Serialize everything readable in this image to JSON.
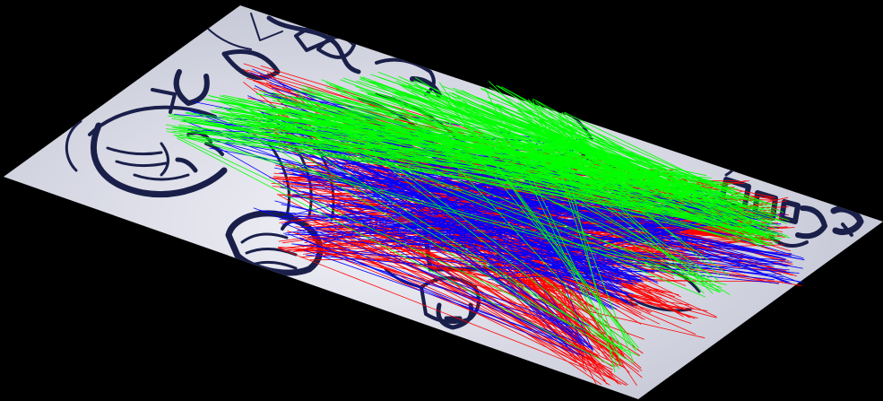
{
  "scene": {
    "subject": "manga-page-on-tilted-plane-with-feature-match-lines",
    "colors": {
      "background": "#000000",
      "paper_light": "#f2f2f8",
      "paper_shadow": "#b9bccd",
      "ink": "#1a1f4a",
      "line_red": "#ff0000",
      "line_green": "#00ff00",
      "line_blue": "#0000ff"
    },
    "line_groups": [
      {
        "name": "red",
        "color": "#ff0000",
        "count": 420
      },
      {
        "name": "green",
        "color": "#00ff00",
        "count": 260
      },
      {
        "name": "blue",
        "color": "#0000ff",
        "count": 240
      }
    ],
    "icons": [
      "manga-illustration-icon"
    ]
  }
}
